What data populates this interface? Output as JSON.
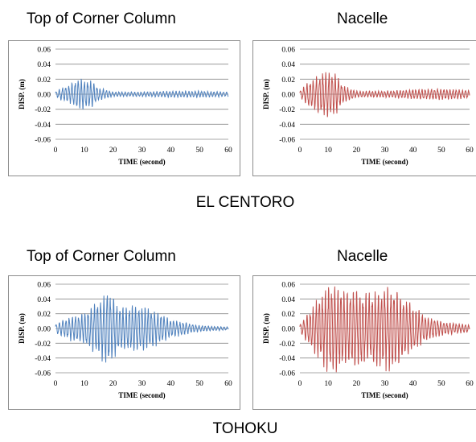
{
  "groups": [
    {
      "label": "EL CENTORO",
      "charts": [
        {
          "title": "Top of Corner Column",
          "color": "#4f81bd",
          "seed": 11
        },
        {
          "title": "Nacelle",
          "color": "#c0504d",
          "seed": 23
        }
      ]
    },
    {
      "label": "TOHOKU",
      "charts": [
        {
          "title": "Top of Corner Column",
          "color": "#4f81bd",
          "seed": 37
        },
        {
          "title": "Nacelle",
          "color": "#c0504d",
          "seed": 53
        }
      ]
    }
  ],
  "chart_data": [
    {
      "type": "line",
      "title": "Top of Corner Column",
      "group": "EL CENTORO",
      "xlabel": "TIME (second)",
      "ylabel": "DISP. (m)",
      "xlim": [
        0,
        60
      ],
      "ylim": [
        -0.06,
        0.06
      ],
      "xticks": [
        "0",
        "10",
        "20",
        "30",
        "40",
        "50",
        "60"
      ],
      "yticks": [
        "0.06",
        "0.04",
        "0.02",
        "0.00",
        "-0.02",
        "-0.04",
        "-0.06"
      ],
      "grid": true,
      "color": "#4f81bd",
      "envelope": {
        "t": [
          0,
          2,
          5,
          8,
          10,
          13,
          15,
          20,
          30,
          40,
          50,
          60
        ],
        "amp": [
          0.003,
          0.008,
          0.012,
          0.02,
          0.018,
          0.016,
          0.008,
          0.003,
          0.003,
          0.004,
          0.004,
          0.003
        ]
      },
      "period": 1.1
    },
    {
      "type": "line",
      "title": "Nacelle",
      "group": "EL CENTORO",
      "xlabel": "TIME (second)",
      "ylabel": "DISP. (m)",
      "xlim": [
        0,
        60
      ],
      "ylim": [
        -0.06,
        0.06
      ],
      "xticks": [
        "0",
        "10",
        "20",
        "30",
        "40",
        "50",
        "60"
      ],
      "yticks": [
        "0.06",
        "0.04",
        "0.02",
        "0.00",
        "-0.02",
        "-0.04",
        "-0.06"
      ],
      "grid": true,
      "color": "#c0504d",
      "envelope": {
        "t": [
          0,
          2,
          5,
          8,
          10,
          13,
          15,
          20,
          30,
          40,
          50,
          60
        ],
        "amp": [
          0.004,
          0.012,
          0.02,
          0.028,
          0.028,
          0.025,
          0.012,
          0.004,
          0.004,
          0.006,
          0.007,
          0.005
        ]
      },
      "period": 1.1
    },
    {
      "type": "line",
      "title": "Top of Corner Column",
      "group": "TOHOKU",
      "xlabel": "TIME (second)",
      "ylabel": "DISP. (m)",
      "xlim": [
        0,
        60
      ],
      "ylim": [
        -0.06,
        0.06
      ],
      "xticks": [
        "0",
        "10",
        "20",
        "30",
        "40",
        "50",
        "60"
      ],
      "yticks": [
        "0.06",
        "0.04",
        "0.02",
        "0.00",
        "-0.02",
        "-0.04",
        "-0.06"
      ],
      "grid": true,
      "color": "#4f81bd",
      "envelope": {
        "t": [
          0,
          5,
          10,
          15,
          18,
          22,
          27,
          33,
          40,
          50,
          60
        ],
        "amp": [
          0.006,
          0.015,
          0.02,
          0.035,
          0.05,
          0.028,
          0.03,
          0.026,
          0.012,
          0.004,
          0.002
        ]
      },
      "period": 1.1
    },
    {
      "type": "line",
      "title": "Nacelle",
      "group": "TOHOKU",
      "xlabel": "TIME (second)",
      "ylabel": "DISP. (m)",
      "xlim": [
        0,
        60
      ],
      "ylim": [
        -0.06,
        0.06
      ],
      "xticks": [
        "0",
        "10",
        "20",
        "30",
        "40",
        "50",
        "60"
      ],
      "yticks": [
        "0.06",
        "0.04",
        "0.02",
        "0.00",
        "-0.02",
        "-0.04",
        "-0.06"
      ],
      "grid": true,
      "color": "#c0504d",
      "envelope": {
        "t": [
          0,
          5,
          10,
          15,
          20,
          24,
          28,
          33,
          38,
          45,
          52,
          60
        ],
        "amp": [
          0.006,
          0.03,
          0.058,
          0.05,
          0.052,
          0.045,
          0.05,
          0.055,
          0.035,
          0.015,
          0.008,
          0.005
        ]
      },
      "period": 1.1
    }
  ]
}
